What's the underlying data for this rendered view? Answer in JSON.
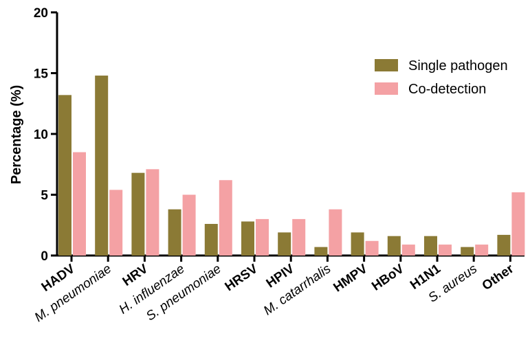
{
  "chart_data": {
    "type": "bar",
    "title": "",
    "xlabel": "",
    "ylabel": "Percentage (%)",
    "ylim": [
      0,
      20
    ],
    "yticks": [
      0,
      5,
      10,
      15,
      20
    ],
    "grid": false,
    "legend_position": "top-right",
    "categories": [
      "HADV",
      "M. pneumoniae",
      "HRV",
      "H. influenzae",
      "S. pneumoniae",
      "HRSV",
      "HPIV",
      "M. catarrhalis",
      "HMPV",
      "HBoV",
      "H1N1",
      "S. aureus",
      "Other"
    ],
    "category_style": [
      "bold",
      "italic",
      "bold",
      "italic",
      "italic",
      "bold",
      "bold",
      "italic",
      "bold",
      "bold",
      "bold",
      "italic",
      "bold"
    ],
    "series": [
      {
        "name": "Single pathogen",
        "color": "#8b7a35",
        "values": [
          13.2,
          14.8,
          6.8,
          3.8,
          2.6,
          2.8,
          1.9,
          0.7,
          1.9,
          1.6,
          1.6,
          0.7,
          1.7
        ]
      },
      {
        "name": "Co-detection",
        "color": "#f4a1a4",
        "values": [
          8.5,
          5.4,
          7.1,
          5.0,
          6.2,
          3.0,
          3.0,
          3.8,
          1.2,
          0.9,
          0.9,
          0.9,
          5.2
        ]
      }
    ]
  }
}
